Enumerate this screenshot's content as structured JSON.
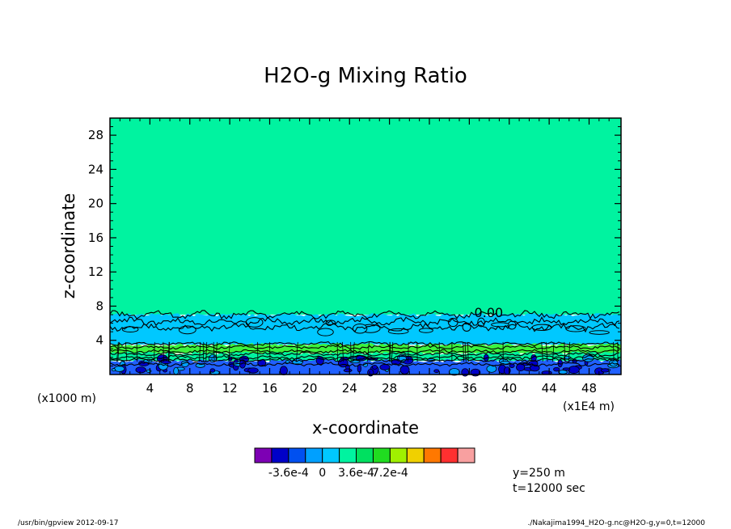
{
  "chart_data": {
    "type": "heatmap",
    "title": "H2O-g Mixing Ratio",
    "xlabel": "x-coordinate",
    "ylabel": "z-coordinate",
    "x_unit": "(x1000 m)",
    "x_scale_note": "(x1E4 m)",
    "xlim": [
      0,
      51.2
    ],
    "ylim": [
      0,
      30
    ],
    "x_ticks": [
      4,
      8,
      12,
      16,
      20,
      24,
      28,
      32,
      36,
      40,
      44,
      48
    ],
    "y_ticks": [
      4,
      8,
      12,
      16,
      20,
      24,
      28
    ],
    "contour_label": "0.00",
    "contour_label_position": [
      36.5,
      7
    ],
    "layers": [
      {
        "z_from": 7,
        "z_to": 30,
        "color": "#00f3a0"
      },
      {
        "z_from": 3.5,
        "z_to": 7,
        "color": "#00c8ff"
      },
      {
        "z_from": 2.5,
        "z_to": 3.5,
        "color": "#3cf23c"
      },
      {
        "z_from": 1.6,
        "z_to": 2.5,
        "color": "#00f3a0"
      },
      {
        "z_from": 0,
        "z_to": 1.6,
        "color": "#2060ff"
      }
    ],
    "colorbar": {
      "colors": [
        "#7d00b4",
        "#0000c8",
        "#0050f0",
        "#00a0ff",
        "#00c8ff",
        "#00f3a0",
        "#00e060",
        "#20dc20",
        "#a0f000",
        "#f0d000",
        "#ff7800",
        "#ff3030",
        "#f8a0a0"
      ],
      "labels": [
        "-3.6e-4",
        "0",
        "3.6e-4",
        "7.2e-4"
      ],
      "label_boundaries": [
        2,
        4,
        6,
        8
      ]
    }
  },
  "info": {
    "y_text": "y=250 m",
    "t_text": "t=12000 sec"
  },
  "footer": {
    "left": "/usr/bin/gpview   2012-09-17",
    "right": "./Nakajima1994_H2O-g.nc@H2O-g,y=0,t=12000"
  }
}
